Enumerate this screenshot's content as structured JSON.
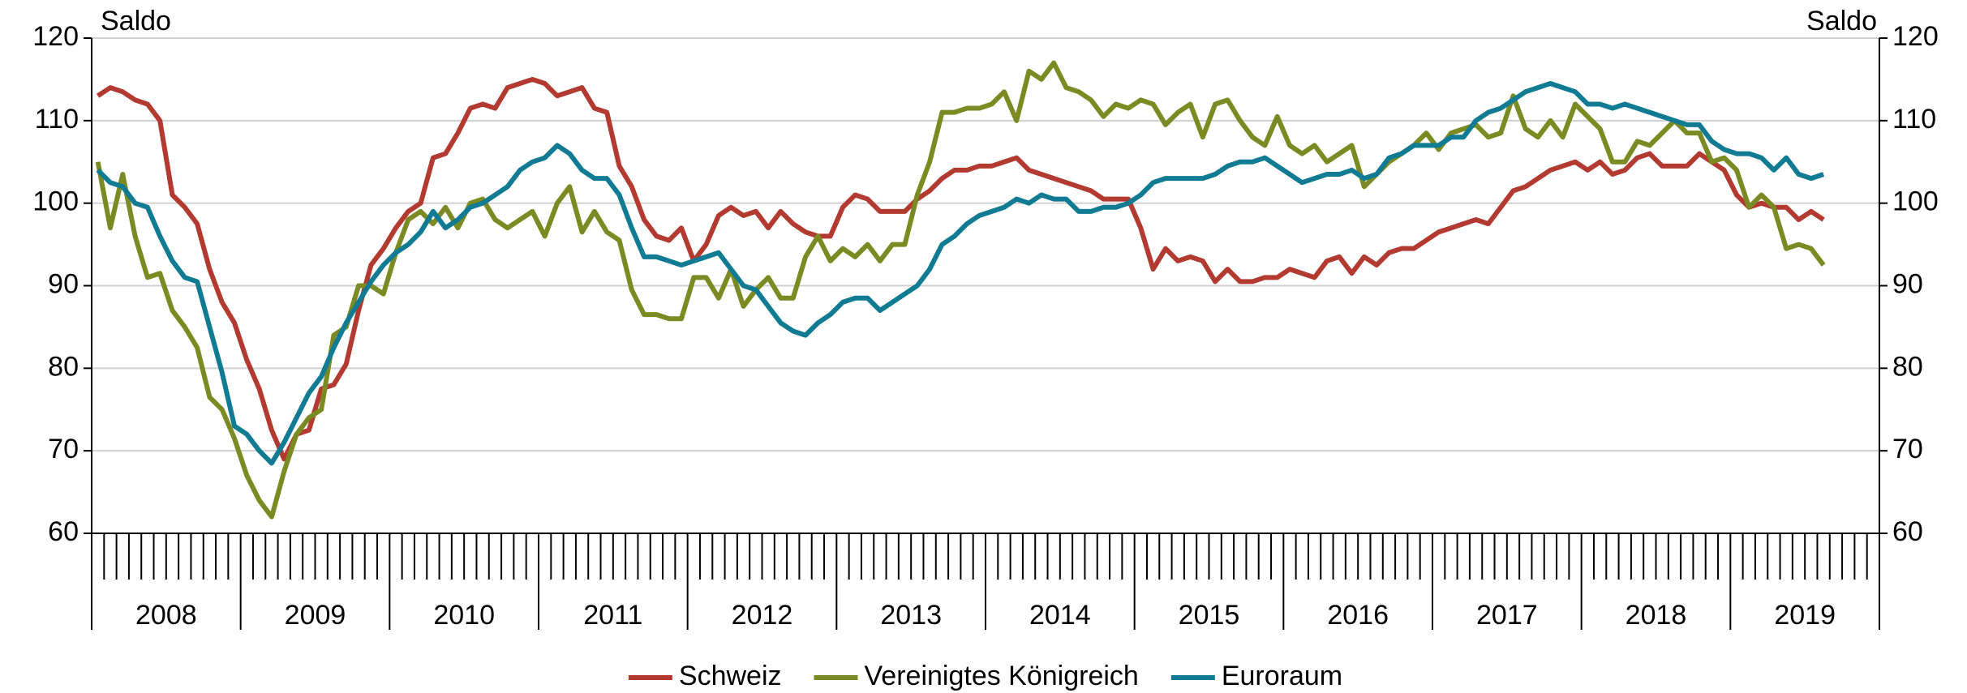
{
  "chart_data": {
    "type": "line",
    "y_label": "Saldo",
    "y2_label": "Saldo",
    "categories": [
      "2008",
      null,
      null,
      null,
      null,
      null,
      null,
      null,
      null,
      null,
      null,
      null,
      "2009",
      null,
      null,
      null,
      null,
      null,
      null,
      null,
      null,
      null,
      null,
      null,
      "2010",
      null,
      null,
      null,
      null,
      null,
      null,
      null,
      null,
      null,
      null,
      null,
      "2011",
      null,
      null,
      null,
      null,
      null,
      null,
      null,
      null,
      null,
      null,
      null,
      "2012",
      null,
      null,
      null,
      null,
      null,
      null,
      null,
      null,
      null,
      null,
      null,
      "2013",
      null,
      null,
      null,
      null,
      null,
      null,
      null,
      null,
      null,
      null,
      null,
      "2014",
      null,
      null,
      null,
      null,
      null,
      null,
      null,
      null,
      null,
      null,
      null,
      "2015",
      null,
      null,
      null,
      null,
      null,
      null,
      null,
      null,
      null,
      null,
      null,
      "2016",
      null,
      null,
      null,
      null,
      null,
      null,
      null,
      null,
      null,
      null,
      null,
      "2017",
      null,
      null,
      null,
      null,
      null,
      null,
      null,
      null,
      null,
      null,
      null,
      "2018",
      null,
      null,
      null,
      null,
      null,
      null,
      null,
      null,
      null,
      null,
      null,
      "2019",
      null,
      null,
      null,
      null,
      null,
      null,
      null
    ],
    "series": [
      {
        "name": "Schweiz",
        "color": "#b23a30",
        "values": [
          113,
          114,
          113.5,
          112.5,
          112,
          110,
          101,
          99.5,
          97.5,
          92,
          88,
          85.5,
          81,
          77.5,
          72.5,
          69,
          72,
          72.5,
          77.5,
          78,
          80.5,
          87,
          92.5,
          94.5,
          97,
          99,
          100,
          105.5,
          106,
          108.5,
          111.5,
          112,
          111.5,
          114,
          114.5,
          115,
          114.5,
          113,
          113.5,
          114,
          111.5,
          111,
          104.5,
          102,
          98,
          96,
          95.5,
          97,
          93,
          95,
          98.5,
          99.5,
          98.5,
          99,
          97,
          99,
          97.5,
          96.5,
          96,
          96,
          99.5,
          101,
          100.5,
          99,
          99,
          99,
          100.5,
          101.5,
          103,
          104,
          104,
          104.5,
          104.5,
          105,
          105.5,
          104,
          103.5,
          103,
          102.5,
          102,
          101.5,
          100.5,
          100.5,
          100.5,
          97,
          92,
          94.5,
          93,
          93.5,
          93,
          90.5,
          92,
          90.5,
          90.5,
          91,
          91,
          92,
          91.5,
          91,
          93,
          93.5,
          91.5,
          93.5,
          92.5,
          94,
          94.5,
          94.5,
          95.5,
          96.5,
          97,
          97.5,
          98,
          97.5,
          99.5,
          101.5,
          102,
          103,
          104,
          104.5,
          105,
          104,
          105,
          103.5,
          104,
          105.5,
          106,
          104.5,
          104.5,
          104.5,
          106,
          105,
          104,
          101,
          99.5,
          100,
          99.5,
          99.5,
          98,
          99,
          98
        ]
      },
      {
        "name": "Vereinigtes Königreich",
        "color": "#7b8a22",
        "values": [
          105,
          97,
          103.5,
          96,
          91,
          91.5,
          87,
          85,
          82.5,
          76.5,
          75,
          71.5,
          67,
          64,
          62,
          67.5,
          72,
          74,
          75,
          84,
          85,
          90,
          90,
          89,
          94,
          98,
          99,
          97.5,
          99.5,
          97,
          100,
          100.5,
          98,
          97,
          98,
          99,
          96,
          100,
          102,
          96.5,
          99,
          96.5,
          95.5,
          89.5,
          86.5,
          86.5,
          86,
          86,
          91,
          91,
          88.5,
          92,
          87.5,
          89.5,
          91,
          88.5,
          88.5,
          93.5,
          96,
          93,
          94.5,
          93.5,
          95,
          93,
          95,
          95,
          101,
          105,
          111,
          111,
          111.5,
          111.5,
          112,
          113.5,
          110,
          116,
          115,
          117,
          114,
          113.5,
          112.5,
          110.5,
          112,
          111.5,
          112.5,
          112,
          109.5,
          111,
          112,
          108,
          112,
          112.5,
          110,
          108,
          107,
          110.5,
          107,
          106,
          107,
          105,
          106,
          107,
          102,
          103.5,
          105,
          106,
          107,
          108.5,
          106.5,
          108.5,
          109,
          109.5,
          108,
          108.5,
          113,
          109,
          108,
          110,
          108,
          112,
          110.5,
          109,
          105,
          105,
          107.5,
          107,
          108.5,
          110,
          108.5,
          108.5,
          105,
          105.5,
          104,
          99.5,
          101,
          99.5,
          94.5,
          95,
          94.5,
          92.5
        ]
      },
      {
        "name": "Euroraum",
        "color": "#107b93",
        "values": [
          104,
          102.5,
          102,
          100,
          99.5,
          96,
          93,
          91,
          90.5,
          85,
          79.5,
          73,
          72,
          70,
          68.5,
          71,
          74,
          77,
          79,
          82.5,
          85.5,
          88,
          90.5,
          92.5,
          94,
          95,
          96.5,
          99,
          97,
          98,
          99.5,
          100,
          101,
          102,
          104,
          105,
          105.5,
          107,
          106,
          104,
          103,
          103,
          101,
          97,
          93.5,
          93.5,
          93,
          92.5,
          93,
          93.5,
          94,
          92,
          90,
          89.5,
          87.5,
          85.5,
          84.5,
          84,
          85.5,
          86.5,
          88,
          88.5,
          88.5,
          87,
          88,
          89,
          90,
          92,
          95,
          96,
          97.5,
          98.5,
          99,
          99.5,
          100.5,
          100,
          101,
          100.5,
          100.5,
          99,
          99,
          99.5,
          99.5,
          100,
          101,
          102.5,
          103,
          103,
          103,
          103,
          103.5,
          104.5,
          105,
          105,
          105.5,
          104.5,
          103.5,
          102.5,
          103,
          103.5,
          103.5,
          104,
          103,
          103.5,
          105.5,
          106,
          107,
          107,
          107,
          108,
          108,
          110,
          111,
          111.5,
          112.5,
          113.5,
          114,
          114.5,
          114,
          113.5,
          112,
          112,
          111.5,
          112,
          111.5,
          111,
          110.5,
          110,
          109.5,
          109.5,
          107.5,
          106.5,
          106,
          106,
          105.5,
          104,
          105.5,
          103.5,
          103,
          103.5
        ]
      }
    ],
    "ylim": [
      60,
      120
    ],
    "yticks": [
      60,
      70,
      80,
      90,
      100,
      110,
      120
    ],
    "y2lim": [
      60,
      120
    ],
    "y2ticks": [
      60,
      70,
      80,
      90,
      100,
      110,
      120
    ],
    "grid": true,
    "legend": "bottom"
  }
}
